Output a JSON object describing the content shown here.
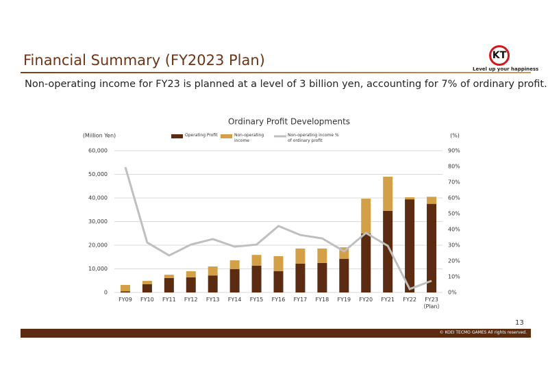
{
  "header": {
    "title": "Financial Summary (FY2023 Plan)",
    "subtitle": "Non-operating income for FY23 is planned at a level of 3 billion yen, accounting for 7% of ordinary profit."
  },
  "logo": {
    "mark": "KT",
    "tagline": "Level up your happiness"
  },
  "footer": {
    "page": "13",
    "copyright": "© KOEI TECMO GAMES All rights reserved."
  },
  "chart_data": {
    "type": "bar",
    "stacked": true,
    "title": "Ordinary Profit Developments",
    "y_label": "(Million Yen)",
    "y2_label": "(%)",
    "categories": [
      "FY09",
      "FY10",
      "FY11",
      "FY12",
      "FY13",
      "FY14",
      "FY15",
      "FY16",
      "FY17",
      "FY18",
      "FY19",
      "FY20",
      "FY21",
      "FY22",
      "FY23（Plan）"
    ],
    "series": [
      {
        "name": "Operating Profit",
        "color": "#5b2c0f",
        "values": [
          500,
          3500,
          6100,
          6400,
          7200,
          9900,
          11300,
          9000,
          12200,
          12500,
          14200,
          25000,
          34500,
          39400,
          37500
        ]
      },
      {
        "name": "Non-operating income",
        "color": "#d4a046",
        "values": [
          2700,
          1400,
          1400,
          2600,
          3800,
          3700,
          4600,
          6400,
          6400,
          6100,
          4900,
          14700,
          14500,
          900,
          3000
        ]
      },
      {
        "name": "Non-operating income % of ordinary profit",
        "type": "line",
        "axis": "y2",
        "color": "#bfbfbf",
        "values": [
          79.6,
          31.7,
          23.5,
          30.4,
          33.9,
          29.1,
          30.4,
          42.2,
          36.5,
          34.3,
          26.1,
          37.8,
          29.6,
          2.2,
          7.4
        ]
      }
    ],
    "ylim": [
      0,
      60000
    ],
    "yticks": [
      0,
      {
        "value": 10000,
        "label": "10,000"
      },
      {
        "value": 20000,
        "label": "20,000"
      },
      {
        "value": 30000,
        "label": "30,000"
      },
      {
        "value": 40000,
        "label": "40,000"
      },
      {
        "value": 50000,
        "label": "50,000"
      },
      {
        "value": 60000,
        "label": "60,000"
      }
    ],
    "y2lim": [
      0,
      90
    ],
    "y2ticks": [
      {
        "value": 0,
        "label": "0%"
      },
      {
        "value": 10,
        "label": "10%"
      },
      {
        "value": 20,
        "label": "20%"
      },
      {
        "value": 30,
        "label": "30%"
      },
      {
        "value": 40,
        "label": "40%"
      },
      {
        "value": 50,
        "label": "50%"
      },
      {
        "value": 60,
        "label": "60%"
      },
      {
        "value": 70,
        "label": "70%"
      },
      {
        "value": 80,
        "label": "80%"
      },
      {
        "value": 90,
        "label": "90%"
      }
    ],
    "grid": true,
    "legend": "top"
  }
}
